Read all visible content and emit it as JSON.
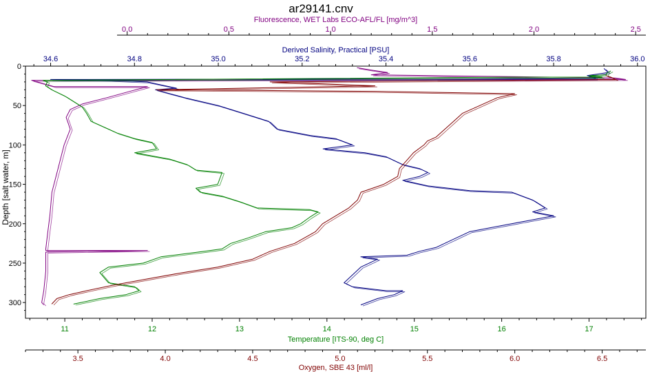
{
  "chart_data": {
    "type": "line",
    "title": "ar29141.cnv",
    "y_axis": {
      "label": "Depth [salt water, m]",
      "range": [
        0,
        320
      ],
      "ticks": [
        0,
        50,
        100,
        150,
        200,
        250,
        300
      ],
      "inverted": true
    },
    "grid": false,
    "axes": [
      {
        "id": "fluorescence",
        "position": "top-1",
        "label": "Fluorescence, WET Labs ECO-AFL/FL [mg/m^3]",
        "color": "#800080",
        "range": [
          -0.5,
          2.55
        ],
        "ticks": [
          0.0,
          0.5,
          1.0,
          1.5,
          2.0,
          2.5
        ],
        "tick_labels": [
          "0.0",
          "0.5",
          "1.0",
          "1.5",
          "2.0",
          "2.5"
        ]
      },
      {
        "id": "salinity",
        "position": "top-2",
        "label": "Derived Salinity, Practical [PSU]",
        "color": "#000080",
        "range": [
          34.54,
          36.02
        ],
        "ticks": [
          34.6,
          34.8,
          35.0,
          35.2,
          35.4,
          35.6,
          35.8,
          36.0
        ],
        "tick_labels": [
          "34.6",
          "34.8",
          "35.0",
          "35.2",
          "35.4",
          "35.6",
          "35.8",
          "36.0"
        ]
      },
      {
        "id": "temperature",
        "position": "bottom-1",
        "label": "Temperature [ITS-90, deg C]",
        "color": "#008000",
        "range": [
          10.55,
          17.65
        ],
        "ticks": [
          11,
          12,
          13,
          14,
          15,
          16,
          17
        ],
        "tick_labels": [
          "11",
          "12",
          "13",
          "14",
          "15",
          "16",
          "17"
        ]
      },
      {
        "id": "oxygen",
        "position": "bottom-2",
        "label": "Oxygen, SBE 43 [ml/l]",
        "color": "#800000",
        "range": [
          3.2,
          6.75
        ],
        "ticks": [
          3.5,
          4.0,
          4.5,
          5.0,
          5.5,
          6.0,
          6.5
        ],
        "tick_labels": [
          "3.5",
          "4.0",
          "4.5",
          "5.0",
          "5.5",
          "6.0",
          "6.5"
        ]
      }
    ],
    "series": [
      {
        "axis": "fluorescence",
        "color": "#800080",
        "points": [
          [
            1.13,
            2
          ],
          [
            1.2,
            5
          ],
          [
            1.28,
            8
          ],
          [
            1.2,
            11
          ],
          [
            2.4,
            15
          ],
          [
            2.45,
            17
          ],
          [
            -0.47,
            18
          ],
          [
            -0.36,
            26
          ],
          [
            0.1,
            26
          ],
          [
            0.0,
            33
          ],
          [
            -0.1,
            40
          ],
          [
            -0.22,
            48
          ],
          [
            -0.28,
            55
          ],
          [
            -0.3,
            65
          ],
          [
            -0.28,
            80
          ],
          [
            -0.31,
            100
          ],
          [
            -0.34,
            130
          ],
          [
            -0.37,
            160
          ],
          [
            -0.38,
            190
          ],
          [
            -0.39,
            210
          ],
          [
            -0.4,
            232
          ],
          [
            -0.4,
            234
          ],
          [
            0.1,
            234
          ],
          [
            -0.4,
            236
          ],
          [
            -0.4,
            260
          ],
          [
            -0.41,
            285
          ],
          [
            -0.42,
            300
          ],
          [
            -0.41,
            303
          ]
        ]
      },
      {
        "axis": "salinity",
        "color": "#000080",
        "points": [
          [
            35.92,
            3
          ],
          [
            35.93,
            8
          ],
          [
            35.88,
            12
          ],
          [
            35.9,
            15
          ],
          [
            35.9,
            16
          ],
          [
            34.6,
            17
          ],
          [
            34.74,
            18
          ],
          [
            34.83,
            20
          ],
          [
            34.9,
            28
          ],
          [
            34.85,
            30
          ],
          [
            34.92,
            40
          ],
          [
            35.0,
            50
          ],
          [
            35.06,
            60
          ],
          [
            35.12,
            70
          ],
          [
            35.14,
            80
          ],
          [
            35.22,
            88
          ],
          [
            35.28,
            92
          ],
          [
            35.32,
            100
          ],
          [
            35.25,
            105
          ],
          [
            35.35,
            110
          ],
          [
            35.4,
            115
          ],
          [
            35.44,
            125
          ],
          [
            35.48,
            130
          ],
          [
            35.5,
            135
          ],
          [
            35.48,
            140
          ],
          [
            35.44,
            145
          ],
          [
            35.5,
            152
          ],
          [
            35.6,
            158
          ],
          [
            35.7,
            160
          ],
          [
            35.75,
            170
          ],
          [
            35.78,
            180
          ],
          [
            35.75,
            185
          ],
          [
            35.8,
            190
          ],
          [
            35.7,
            200
          ],
          [
            35.65,
            205
          ],
          [
            35.6,
            210
          ],
          [
            35.58,
            215
          ],
          [
            35.56,
            220
          ],
          [
            35.54,
            225
          ],
          [
            35.52,
            230
          ],
          [
            35.48,
            235
          ],
          [
            35.45,
            240
          ],
          [
            35.34,
            242
          ],
          [
            35.38,
            245
          ],
          [
            35.34,
            255
          ],
          [
            35.32,
            265
          ],
          [
            35.3,
            275
          ],
          [
            35.32,
            280
          ],
          [
            35.4,
            285
          ],
          [
            35.44,
            285
          ],
          [
            35.42,
            290
          ],
          [
            35.38,
            295
          ],
          [
            35.34,
            303
          ]
        ]
      },
      {
        "axis": "temperature",
        "color": "#008000",
        "points": [
          [
            17.25,
            6
          ],
          [
            17.2,
            9
          ],
          [
            17.2,
            11
          ],
          [
            17.0,
            12
          ],
          [
            17.15,
            14
          ],
          [
            16.2,
            14
          ],
          [
            10.75,
            18
          ],
          [
            10.8,
            20
          ],
          [
            10.78,
            25
          ],
          [
            10.85,
            30
          ],
          [
            11.0,
            38
          ],
          [
            11.1,
            45
          ],
          [
            11.2,
            52
          ],
          [
            11.25,
            60
          ],
          [
            11.3,
            70
          ],
          [
            11.5,
            80
          ],
          [
            11.6,
            85
          ],
          [
            11.8,
            92
          ],
          [
            12.0,
            97
          ],
          [
            12.05,
            105
          ],
          [
            11.8,
            110
          ],
          [
            12.2,
            118
          ],
          [
            12.4,
            125
          ],
          [
            12.5,
            132
          ],
          [
            12.8,
            135
          ],
          [
            12.75,
            150
          ],
          [
            12.5,
            155
          ],
          [
            12.55,
            160
          ],
          [
            12.8,
            165
          ],
          [
            13.0,
            172
          ],
          [
            13.2,
            180
          ],
          [
            13.8,
            182
          ],
          [
            13.9,
            185
          ],
          [
            13.8,
            192
          ],
          [
            13.7,
            200
          ],
          [
            13.6,
            205
          ],
          [
            13.3,
            210
          ],
          [
            13.1,
            218
          ],
          [
            12.9,
            225
          ],
          [
            12.8,
            232
          ],
          [
            12.6,
            235
          ],
          [
            12.1,
            242
          ],
          [
            11.9,
            250
          ],
          [
            11.5,
            255
          ],
          [
            11.4,
            262
          ],
          [
            11.5,
            275
          ],
          [
            11.8,
            280
          ],
          [
            11.85,
            285
          ],
          [
            11.7,
            290
          ],
          [
            11.4,
            295
          ],
          [
            11.1,
            302
          ]
        ]
      },
      {
        "axis": "oxygen",
        "color": "#800000",
        "points": [
          [
            6.52,
            12
          ],
          [
            6.55,
            14
          ],
          [
            6.58,
            17
          ],
          [
            4.6,
            20
          ],
          [
            5.2,
            25
          ],
          [
            3.95,
            30
          ],
          [
            5.2,
            32
          ],
          [
            6.0,
            35
          ],
          [
            5.9,
            40
          ],
          [
            5.8,
            50
          ],
          [
            5.7,
            60
          ],
          [
            5.65,
            70
          ],
          [
            5.6,
            80
          ],
          [
            5.55,
            90
          ],
          [
            5.5,
            95
          ],
          [
            5.48,
            100
          ],
          [
            5.42,
            110
          ],
          [
            5.38,
            120
          ],
          [
            5.34,
            130
          ],
          [
            5.33,
            140
          ],
          [
            5.25,
            150
          ],
          [
            5.12,
            160
          ],
          [
            5.1,
            170
          ],
          [
            5.05,
            180
          ],
          [
            4.9,
            200
          ],
          [
            4.86,
            210
          ],
          [
            4.82,
            215
          ],
          [
            4.74,
            225
          ],
          [
            4.6,
            235
          ],
          [
            4.5,
            245
          ],
          [
            4.3,
            255
          ],
          [
            4.1,
            262
          ],
          [
            3.9,
            270
          ],
          [
            3.7,
            278
          ],
          [
            3.55,
            285
          ],
          [
            3.45,
            290
          ],
          [
            3.38,
            295
          ],
          [
            3.35,
            302
          ]
        ]
      }
    ]
  }
}
